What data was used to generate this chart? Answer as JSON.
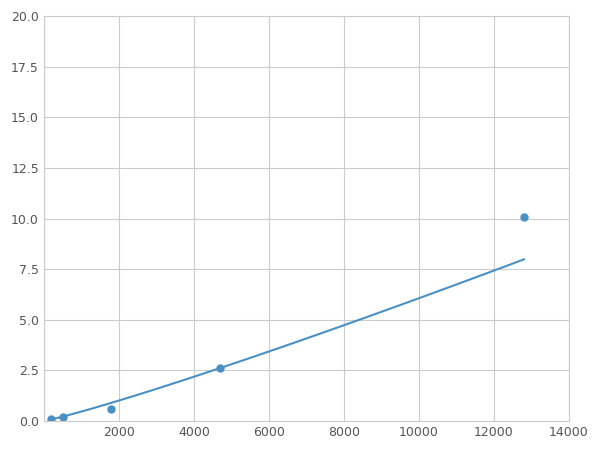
{
  "x_points": [
    200,
    500,
    1800,
    4700,
    12800
  ],
  "y_points": [
    0.1,
    0.2,
    0.6,
    2.6,
    10.1
  ],
  "line_color": "#4a90c4",
  "marker_color": "#4a90c4",
  "marker_size": 5,
  "linewidth": 1.5,
  "xlim": [
    0,
    14000
  ],
  "ylim": [
    0,
    20.0
  ],
  "xticks": [
    0,
    2000,
    4000,
    6000,
    8000,
    10000,
    12000,
    14000
  ],
  "yticks": [
    0.0,
    2.5,
    5.0,
    7.5,
    10.0,
    12.5,
    15.0,
    17.5,
    20.0
  ],
  "grid_color": "#cccccc",
  "background_color": "#ffffff",
  "figsize": [
    6.0,
    4.5
  ],
  "dpi": 100
}
